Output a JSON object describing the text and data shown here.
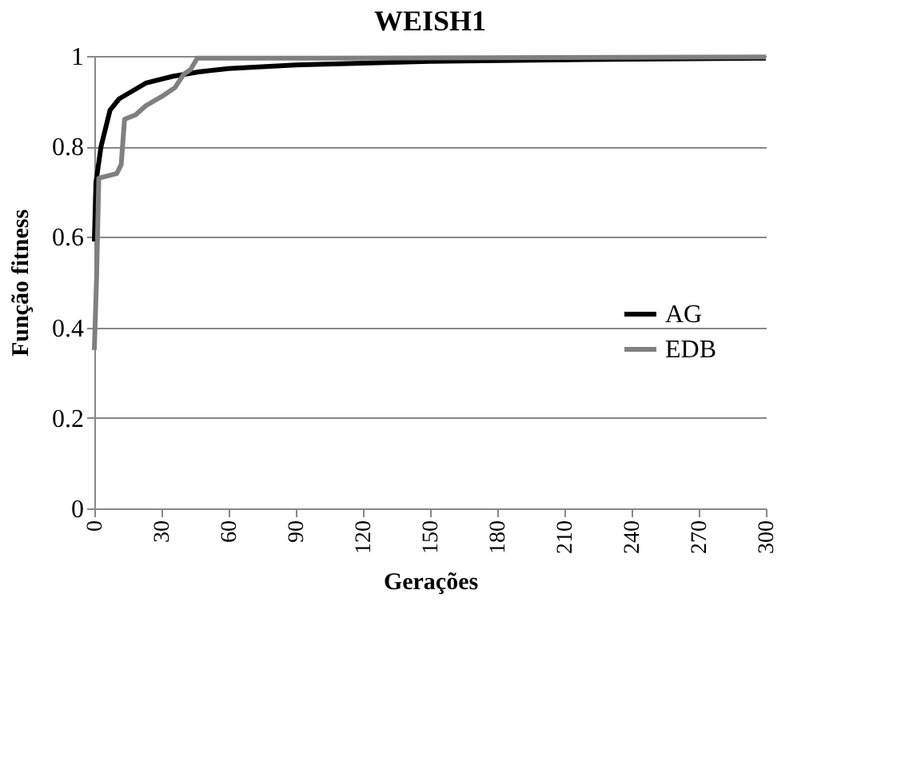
{
  "chart_data": {
    "type": "line",
    "title": "WEISH1",
    "xlabel": "Gerações",
    "ylabel": "Função fitness",
    "xlim": [
      0,
      300
    ],
    "xticks": [
      0,
      30,
      60,
      90,
      120,
      150,
      180,
      210,
      240,
      270,
      300
    ],
    "ylim": [
      0,
      1
    ],
    "yticks": [
      0,
      0.2,
      0.4,
      0.6,
      0.8,
      1
    ],
    "grid": "y",
    "legend": "right",
    "series": [
      {
        "name": "AG",
        "color": "#000000",
        "x": [
          0,
          0.7,
          3,
          7,
          11,
          23,
          35,
          47,
          60,
          90,
          150,
          220,
          300
        ],
        "values": [
          0.59,
          0.72,
          0.8,
          0.88,
          0.905,
          0.94,
          0.955,
          0.965,
          0.972,
          0.98,
          0.988,
          0.992,
          0.995
        ]
      },
      {
        "name": "EDB",
        "color": "#808080",
        "x": [
          0,
          1,
          2,
          10,
          12,
          13.5,
          18.5,
          23,
          30,
          36,
          40,
          43,
          46,
          100,
          300
        ],
        "values": [
          0.35,
          0.51,
          0.73,
          0.74,
          0.76,
          0.86,
          0.87,
          0.89,
          0.91,
          0.93,
          0.96,
          0.97,
          0.995,
          0.995,
          0.998
        ]
      }
    ]
  }
}
